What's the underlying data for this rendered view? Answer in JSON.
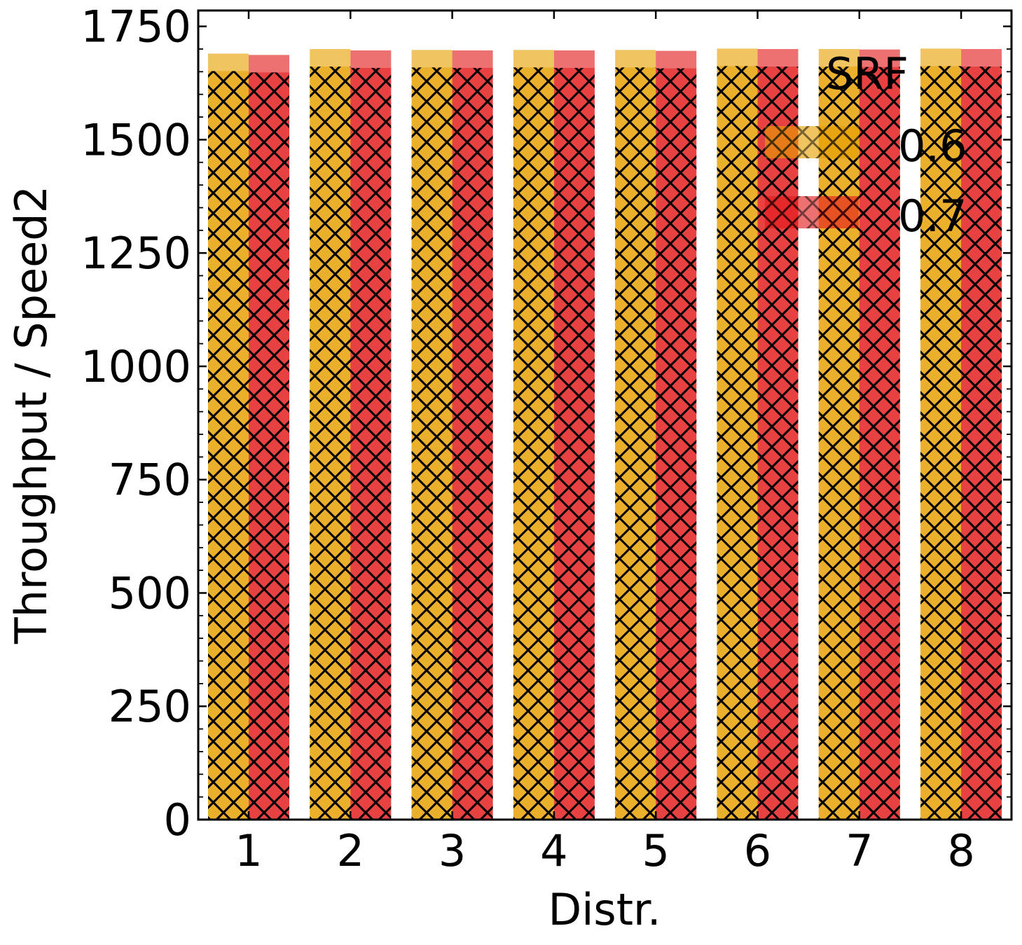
{
  "chart_data": {
    "type": "bar",
    "xlabel": "Distr.",
    "ylabel": "Throughput / Speed2",
    "categories": [
      "1",
      "2",
      "3",
      "4",
      "5",
      "6",
      "7",
      "8"
    ],
    "series": [
      {
        "name": "0.6",
        "color": "#e69f00",
        "values": [
          1690,
          1700,
          1698,
          1698,
          1698,
          1701,
          1700,
          1701
        ]
      },
      {
        "name": "0.7",
        "color": "#e41a1c",
        "values": [
          1687,
          1697,
          1697,
          1697,
          1696,
          1700,
          1699,
          1700
        ]
      }
    ],
    "ylim": [
      0,
      1785
    ],
    "yticks": [
      0,
      250,
      500,
      750,
      1000,
      1250,
      1500,
      1750
    ],
    "hatch": "crosshatch",
    "legend": {
      "title": "SRF",
      "placement": "top-right"
    },
    "grid": false
  }
}
